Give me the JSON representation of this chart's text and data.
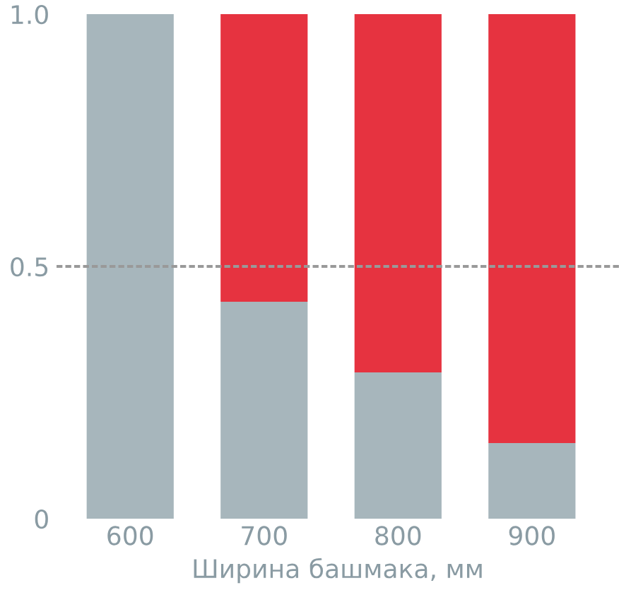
{
  "chart_data": {
    "type": "bar",
    "stacked": true,
    "xlabel": "Ширина башмака, мм",
    "categories": [
      "600",
      "700",
      "800",
      "900"
    ],
    "series": [
      {
        "color": "#a7b6bc",
        "values": [
          1.0,
          0.43,
          0.29,
          0.15
        ]
      },
      {
        "color": "#e63340",
        "values": [
          0,
          0.57,
          0.71,
          0.85
        ]
      }
    ],
    "ylim": [
      0,
      1.0
    ],
    "yticks": [
      0,
      {
        "value": 0.5,
        "label": "0.5"
      },
      {
        "value": 1.0,
        "label": "1.0"
      }
    ],
    "ref_lines": [
      {
        "axis": "y",
        "value": 0.5,
        "color": "#999999",
        "line_style": "dashed"
      }
    ],
    "grid": false,
    "legend": false
  }
}
